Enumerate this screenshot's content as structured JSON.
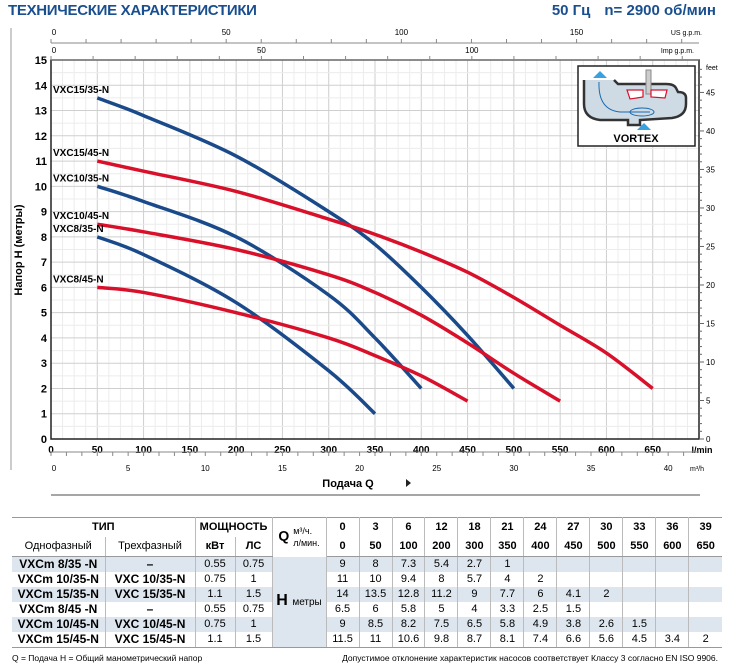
{
  "header": {
    "title": "ТЕХНИЧЕСКИЕ ХАРАКТЕРИСТИКИ",
    "frequency": "50 Гц",
    "speed": "n= 2900 об/мин"
  },
  "chart_data": {
    "type": "line",
    "xlabel": "Подача Q",
    "ylabel": "Напор H (метры)",
    "x_unit": "l/min",
    "xlim": [
      0,
      700
    ],
    "ylim": [
      0,
      15
    ],
    "x_ticks": [
      0,
      50,
      100,
      150,
      200,
      250,
      300,
      350,
      400,
      450,
      500,
      550,
      600,
      650
    ],
    "y_ticks": [
      0,
      1,
      2,
      3,
      4,
      5,
      6,
      7,
      8,
      9,
      10,
      11,
      12,
      13,
      14,
      15
    ],
    "secondary_axes": {
      "us_gpm": {
        "label": "US g.p.m.",
        "ticks": [
          0,
          50,
          100,
          150
        ]
      },
      "imp_gpm": {
        "label": "Imp g.p.m.",
        "ticks": [
          0,
          50,
          100
        ]
      },
      "m3h": {
        "label": "m³/h",
        "ticks": [
          0,
          5,
          10,
          15,
          20,
          25,
          30,
          35,
          40
        ]
      },
      "feet": {
        "label": "feet",
        "ticks": [
          0,
          5,
          10,
          15,
          20,
          25,
          30,
          35,
          40,
          45
        ]
      }
    },
    "grid": true,
    "series": [
      {
        "name": "VXC15/35-N",
        "color": "#1a4a8a",
        "x": [
          50,
          100,
          200,
          300,
          350,
          400,
          450,
          500
        ],
        "y": [
          13.5,
          12.8,
          11.2,
          9,
          7.7,
          6,
          4.1,
          2
        ]
      },
      {
        "name": "VXC15/45-N",
        "color": "#d9102a",
        "x": [
          50,
          100,
          200,
          300,
          350,
          400,
          450,
          500,
          550,
          600,
          650
        ],
        "y": [
          11,
          10.6,
          9.8,
          8.7,
          8.1,
          7.4,
          6.6,
          5.6,
          4.5,
          3.4,
          2
        ]
      },
      {
        "name": "VXC10/35-N",
        "color": "#1a4a8a",
        "x": [
          50,
          100,
          200,
          300,
          350,
          400
        ],
        "y": [
          10,
          9.4,
          8,
          5.7,
          4,
          2
        ]
      },
      {
        "name": "VXC10/45-N",
        "color": "#d9102a",
        "x": [
          50,
          100,
          200,
          300,
          350,
          400,
          450,
          500,
          550
        ],
        "y": [
          8.5,
          8.2,
          7.5,
          6.5,
          5.8,
          4.9,
          3.8,
          2.6,
          1.5
        ]
      },
      {
        "name": "VXC8/35-N",
        "color": "#1a4a8a",
        "x": [
          50,
          100,
          200,
          300,
          350
        ],
        "y": [
          8,
          7.3,
          5.4,
          2.7,
          1
        ]
      },
      {
        "name": "VXC8/45-N",
        "color": "#d9102a",
        "x": [
          50,
          100,
          200,
          300,
          350,
          400,
          450
        ],
        "y": [
          6,
          5.8,
          5,
          4,
          3.3,
          2.5,
          1.5
        ]
      }
    ],
    "inset": {
      "label": "VORTEX",
      "icon": "vortex-impeller-diagram"
    }
  },
  "table": {
    "type_header": "ТИП",
    "power_header": "МОЩНОСТЬ",
    "single_phase": "Однофазный",
    "three_phase": "Трехфазный",
    "kw": "кВт",
    "hp": "ЛС",
    "q_label": "Q",
    "q_m3h_unit": "м³/ч.",
    "q_lmin_unit": "л/мин.",
    "h_label": "H",
    "h_unit": "метры",
    "q_m3h": [
      "0",
      "3",
      "6",
      "12",
      "18",
      "21",
      "24",
      "27",
      "30",
      "33",
      "36",
      "39"
    ],
    "q_lmin": [
      "0",
      "50",
      "100",
      "200",
      "300",
      "350",
      "400",
      "450",
      "500",
      "550",
      "600",
      "650"
    ],
    "rows": [
      {
        "single": "VXCm 8/35  -N",
        "three": "–",
        "kw": "0.55",
        "hp": "0.75",
        "h": [
          "9",
          "8",
          "7.3",
          "5.4",
          "2.7",
          "1",
          "",
          "",
          "",
          "",
          "",
          ""
        ]
      },
      {
        "single": "VXCm 10/35-N",
        "three": "VXC 10/35-N",
        "kw": "0.75",
        "hp": "1",
        "h": [
          "11",
          "10",
          "9.4",
          "8",
          "5.7",
          "4",
          "2",
          "",
          "",
          "",
          "",
          ""
        ]
      },
      {
        "single": "VXCm 15/35-N",
        "three": "VXC 15/35-N",
        "kw": "1.1",
        "hp": "1.5",
        "h": [
          "14",
          "13.5",
          "12.8",
          "11.2",
          "9",
          "7.7",
          "6",
          "4.1",
          "2",
          "",
          "",
          ""
        ]
      },
      {
        "single": "VXCm 8/45  -N",
        "three": "–",
        "kw": "0.55",
        "hp": "0.75",
        "h": [
          "6.5",
          "6",
          "5.8",
          "5",
          "4",
          "3.3",
          "2.5",
          "1.5",
          "",
          "",
          "",
          ""
        ]
      },
      {
        "single": "VXCm 10/45-N",
        "three": "VXC 10/45-N",
        "kw": "0.75",
        "hp": "1",
        "h": [
          "9",
          "8.5",
          "8.2",
          "7.5",
          "6.5",
          "5.8",
          "4.9",
          "3.8",
          "2.6",
          "1.5",
          "",
          ""
        ]
      },
      {
        "single": "VXCm 15/45-N",
        "three": "VXC 15/45-N",
        "kw": "1.1",
        "hp": "1.5",
        "h": [
          "11.5",
          "11",
          "10.6",
          "9.8",
          "8.7",
          "8.1",
          "7.4",
          "6.6",
          "5.6",
          "4.5",
          "3.4",
          "2"
        ]
      }
    ]
  },
  "footer": {
    "legend": "Q = Подача   H = Общий манометрический напор",
    "tolerance": "Допустимое отклонение характеристик насосов соответствует Классу 3 согласно EN ISO 9906."
  }
}
